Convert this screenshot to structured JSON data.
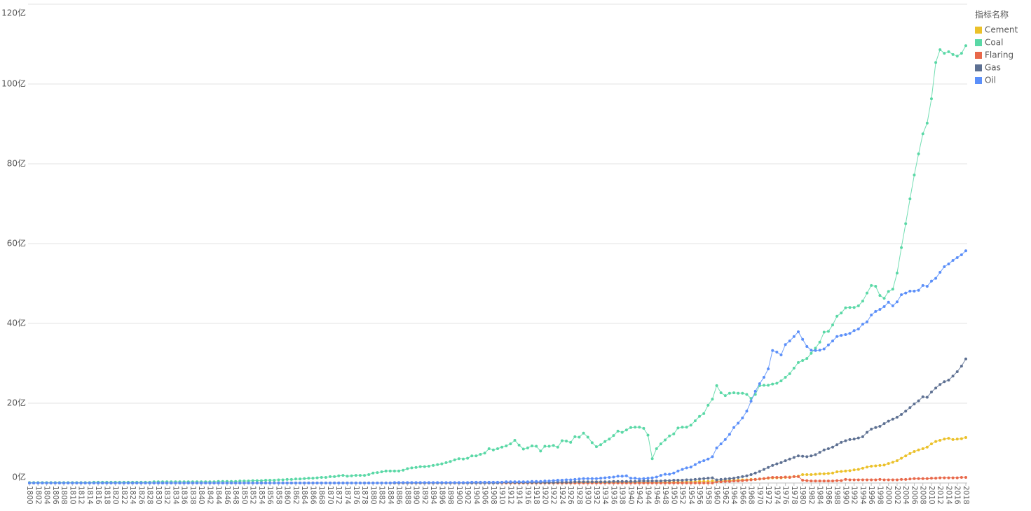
{
  "chart_data": {
    "type": "line",
    "legend_title": "指标名称",
    "legend_position": "right",
    "grid": true,
    "ylim": [
      0,
      120
    ],
    "yticks": [
      {
        "value": 0,
        "label": "0亿"
      },
      {
        "value": 20,
        "label": "20亿"
      },
      {
        "value": 40,
        "label": "40亿"
      },
      {
        "value": 60,
        "label": "60亿"
      },
      {
        "value": 80,
        "label": "80亿"
      },
      {
        "value": 100,
        "label": "100亿"
      },
      {
        "value": 120,
        "label": "120亿"
      }
    ],
    "categories": [
      "1800",
      null,
      "1802",
      null,
      "1804",
      null,
      "1806",
      null,
      "1808",
      null,
      "1810",
      null,
      "1812",
      null,
      "1814",
      null,
      "1816",
      null,
      "1818",
      null,
      "1820",
      null,
      "1822",
      null,
      "1824",
      null,
      "1826",
      null,
      "1828",
      null,
      "1830",
      null,
      "1832",
      null,
      "1834",
      null,
      "1836",
      null,
      "1838",
      null,
      "1840",
      null,
      "1842",
      null,
      "1844",
      null,
      "1846",
      null,
      "1848",
      null,
      "1850",
      null,
      "1852",
      null,
      "1854",
      null,
      "1856",
      null,
      "1858",
      null,
      "1860",
      null,
      "1862",
      null,
      "1864",
      null,
      "1866",
      null,
      "1868",
      null,
      "1870",
      null,
      "1872",
      null,
      "1874",
      null,
      "1876",
      null,
      "1878",
      null,
      "1880",
      null,
      "1882",
      null,
      "1884",
      null,
      "1886",
      null,
      "1888",
      null,
      "1890",
      null,
      "1892",
      null,
      "1894",
      null,
      "1896",
      null,
      "1898",
      null,
      "1900",
      null,
      "1902",
      null,
      "1904",
      null,
      "1906",
      null,
      "1908",
      null,
      "1910",
      null,
      "1912",
      null,
      "1914",
      null,
      "1916",
      null,
      "1918",
      null,
      "1920",
      null,
      "1922",
      null,
      "1924",
      null,
      "1926",
      null,
      "1928",
      null,
      "1930",
      null,
      "1932",
      null,
      "1934",
      null,
      "1936",
      null,
      "1938",
      null,
      "1940",
      null,
      "1942",
      null,
      "1944",
      null,
      "1946",
      null,
      "1948",
      null,
      "1950",
      null,
      "1952",
      null,
      "1954",
      null,
      "1956",
      null,
      "1958",
      null,
      "1960",
      null,
      "1962",
      null,
      "1964",
      null,
      "1966",
      null,
      "1968",
      null,
      "1970",
      null,
      "1972",
      null,
      "1974",
      null,
      "1976",
      null,
      "1978",
      null,
      "1980",
      null,
      "1982",
      null,
      "1984",
      null,
      "1986",
      null,
      "1988",
      null,
      "1990",
      null,
      "1992",
      null,
      "1994",
      null,
      "1996",
      null,
      "1998",
      null,
      "2000",
      null,
      "2002",
      null,
      "2004",
      null,
      "2006",
      null,
      "2008",
      null,
      "2010",
      null,
      "2012",
      null,
      "2014",
      null,
      "2016",
      null,
      "2018"
    ],
    "series": [
      {
        "name": "Cement",
        "color": "#ebc12a",
        "values": [
          0,
          0,
          0,
          0,
          0,
          0,
          0,
          0,
          0,
          0,
          0,
          0,
          0,
          0,
          0,
          0,
          0,
          0,
          0,
          0,
          0,
          0,
          0,
          0,
          0,
          0,
          0,
          0,
          0,
          0,
          0,
          0,
          0,
          0,
          0,
          0,
          0,
          0,
          0,
          0,
          0,
          0,
          0,
          0,
          0,
          0,
          0,
          0,
          0,
          0,
          0,
          0,
          0,
          0,
          0,
          0,
          0,
          0,
          0,
          0,
          0,
          0,
          0,
          0,
          0,
          0,
          0,
          0,
          0,
          0,
          0,
          0,
          0,
          0,
          0,
          0,
          0,
          0,
          0,
          0,
          0,
          0,
          0,
          0,
          0,
          0,
          0,
          0,
          0,
          0,
          0,
          0,
          0,
          0,
          0,
          0,
          0,
          0,
          0,
          0,
          0,
          0,
          0,
          0,
          0,
          0,
          0,
          0,
          0,
          0,
          0,
          0,
          0,
          0,
          0,
          0,
          0,
          0,
          0,
          0,
          0,
          0,
          0,
          0,
          0,
          0,
          0,
          0,
          0.1,
          0.1,
          0.1,
          0.1,
          0.1,
          0.1,
          0.1,
          0.1,
          0.1,
          0.1,
          0.1,
          0.1,
          0.1,
          0.1,
          0.1,
          0.1,
          0.1,
          0.1,
          0.1,
          0.1,
          0.2,
          0.2,
          0.2,
          0.2,
          0.2,
          0.3,
          0.3,
          0.3,
          0.4,
          0.4,
          0.4,
          0.5,
          0.5,
          0.5,
          0.6,
          0.6,
          0.7,
          0.7,
          0.8,
          0.8,
          0.9,
          0.9,
          1.0,
          1.1,
          1.2,
          1.3,
          1.3,
          1.3,
          1.4,
          1.5,
          1.6,
          1.7,
          2.1,
          2.1,
          2.1,
          2.2,
          2.3,
          2.3,
          2.4,
          2.5,
          2.8,
          2.9,
          3.0,
          3.1,
          3.3,
          3.4,
          3.7,
          4.0,
          4.2,
          4.3,
          4.4,
          4.5,
          4.9,
          5.2,
          5.6,
          6.2,
          6.8,
          7.4,
          7.9,
          8.3,
          8.6,
          9.0,
          9.8,
          10.4,
          10.7,
          11.0,
          11.2,
          10.9,
          11.0,
          11.1,
          11.4
        ]
      },
      {
        "name": "Coal",
        "color": "#5ad8a6",
        "values": [
          0.1,
          0.1,
          0.1,
          0.1,
          0.1,
          0.1,
          0.1,
          0.1,
          0.1,
          0.1,
          0.1,
          0.1,
          0.1,
          0.1,
          0.1,
          0.2,
          0.2,
          0.2,
          0.2,
          0.2,
          0.2,
          0.2,
          0.2,
          0.2,
          0.2,
          0.2,
          0.2,
          0.2,
          0.2,
          0.3,
          0.3,
          0.3,
          0.3,
          0.3,
          0.3,
          0.3,
          0.3,
          0.3,
          0.3,
          0.3,
          0.3,
          0.3,
          0.3,
          0.3,
          0.4,
          0.4,
          0.4,
          0.4,
          0.4,
          0.5,
          0.5,
          0.5,
          0.6,
          0.6,
          0.6,
          0.7,
          0.7,
          0.7,
          0.8,
          0.8,
          0.9,
          0.9,
          1.0,
          1.0,
          1.1,
          1.2,
          1.2,
          1.3,
          1.4,
          1.4,
          1.6,
          1.6,
          1.8,
          1.9,
          1.7,
          1.8,
          1.9,
          1.9,
          1.9,
          2.1,
          2.5,
          2.6,
          2.8,
          3.0,
          3.0,
          3.0,
          3.0,
          3.2,
          3.6,
          3.8,
          3.9,
          4.1,
          4.1,
          4.2,
          4.4,
          4.6,
          4.8,
          5.1,
          5.4,
          5.8,
          6.1,
          6.0,
          6.2,
          6.8,
          6.8,
          7.2,
          7.5,
          8.6,
          8.3,
          8.6,
          9.0,
          9.3,
          9.8,
          10.7,
          9.5,
          8.5,
          8.8,
          9.3,
          9.2,
          8.0,
          9.2,
          9.2,
          9.4,
          9.0,
          10.6,
          10.5,
          10.2,
          11.6,
          11.5,
          12.5,
          11.5,
          10.1,
          9.1,
          9.6,
          10.4,
          11.0,
          11.9,
          13.0,
          12.7,
          13.3,
          13.9,
          14.0,
          14.0,
          13.7,
          12.0,
          6.1,
          8.6,
          9.8,
          10.8,
          11.8,
          12.3,
          13.8,
          14.0,
          14.0,
          14.5,
          15.6,
          16.7,
          17.4,
          19.5,
          21.0,
          24.4,
          22.6,
          21.9,
          22.5,
          22.6,
          22.5,
          22.5,
          22.2,
          21.2,
          22.2,
          24.4,
          24.5,
          24.5,
          24.8,
          25.0,
          25.6,
          26.5,
          27.4,
          28.8,
          30.2,
          30.7,
          31.2,
          32.5,
          33.8,
          35.3,
          37.8,
          38.0,
          39.6,
          41.8,
          42.6,
          43.9,
          44.0,
          44.0,
          44.4,
          45.6,
          47.6,
          49.5,
          49.3,
          47.0,
          46.3,
          48.0,
          48.6,
          52.6,
          59.0,
          65.0,
          71.2,
          77.2,
          82.5,
          87.5,
          90.2,
          96.3,
          105.4,
          108.6,
          107.7,
          108.1,
          107.4,
          107.0,
          107.7,
          109.6
        ]
      },
      {
        "name": "Flaring",
        "color": "#e8684a",
        "values": [
          0,
          0,
          0,
          0,
          0,
          0,
          0,
          0,
          0,
          0,
          0,
          0,
          0,
          0,
          0,
          0,
          0,
          0,
          0,
          0,
          0,
          0,
          0,
          0,
          0,
          0,
          0,
          0,
          0,
          0,
          0,
          0,
          0,
          0,
          0,
          0,
          0,
          0,
          0,
          0,
          0,
          0,
          0,
          0,
          0,
          0,
          0,
          0,
          0,
          0,
          0,
          0,
          0,
          0,
          0,
          0,
          0,
          0,
          0,
          0,
          0,
          0,
          0,
          0,
          0,
          0,
          0,
          0,
          0,
          0,
          0,
          0,
          0,
          0,
          0,
          0,
          0,
          0,
          0,
          0,
          0,
          0,
          0,
          0,
          0,
          0,
          0,
          0,
          0,
          0,
          0,
          0,
          0,
          0,
          0,
          0,
          0,
          0,
          0,
          0,
          0,
          0,
          0,
          0,
          0,
          0,
          0,
          0,
          0,
          0,
          0,
          0,
          0,
          0,
          0,
          0,
          0,
          0,
          0,
          0,
          0,
          0,
          0,
          0,
          0,
          0,
          0,
          0,
          0,
          0,
          0,
          0,
          0,
          0,
          0,
          0,
          0,
          0,
          0,
          0,
          0,
          0,
          0,
          0,
          0,
          0,
          0,
          0,
          0,
          0,
          0,
          0,
          0,
          0,
          0,
          0,
          0,
          0,
          0,
          0,
          0.3,
          0.3,
          0.4,
          0.4,
          0.5,
          0.5,
          0.6,
          0.7,
          0.8,
          0.9,
          1.0,
          1.1,
          1.3,
          1.4,
          1.4,
          1.4,
          1.5,
          1.4,
          1.6,
          1.6,
          0.7,
          0.6,
          0.5,
          0.5,
          0.5,
          0.5,
          0.5,
          0.5,
          0.6,
          0.6,
          0.9,
          0.8,
          0.8,
          0.8,
          0.8,
          0.8,
          0.8,
          0.8,
          0.9,
          0.8,
          0.8,
          0.8,
          0.8,
          0.9,
          0.9,
          1.0,
          1.1,
          1.1,
          1.1,
          1.1,
          1.2,
          1.2,
          1.3,
          1.3,
          1.3,
          1.3,
          1.3,
          1.4,
          1.4
        ]
      },
      {
        "name": "Gas",
        "color": "#5d7092",
        "values": [
          0,
          0,
          0,
          0,
          0,
          0,
          0,
          0,
          0,
          0,
          0,
          0,
          0,
          0,
          0,
          0,
          0,
          0,
          0,
          0,
          0,
          0,
          0,
          0,
          0,
          0,
          0,
          0,
          0,
          0,
          0,
          0,
          0,
          0,
          0,
          0,
          0,
          0,
          0,
          0,
          0,
          0,
          0,
          0,
          0,
          0,
          0,
          0,
          0,
          0,
          0,
          0,
          0,
          0,
          0,
          0,
          0,
          0,
          0,
          0,
          0,
          0,
          0,
          0,
          0,
          0,
          0,
          0,
          0,
          0,
          0,
          0,
          0,
          0,
          0,
          0,
          0,
          0,
          0,
          0,
          0,
          0,
          0,
          0,
          0,
          0,
          0,
          0,
          0,
          0,
          0,
          0,
          0,
          0,
          0,
          0,
          0,
          0,
          0,
          0,
          0,
          0,
          0,
          0,
          0,
          0,
          0,
          0,
          0,
          0,
          0.1,
          0.1,
          0.1,
          0.1,
          0.1,
          0.1,
          0.1,
          0.1,
          0.1,
          0.1,
          0.1,
          0.1,
          0.1,
          0.2,
          0.2,
          0.2,
          0.2,
          0.3,
          0.3,
          0.3,
          0.3,
          0.3,
          0.3,
          0.3,
          0.3,
          0.3,
          0.4,
          0.4,
          0.4,
          0.4,
          0.4,
          0.4,
          0.5,
          0.5,
          0.5,
          0.5,
          0.5,
          0.5,
          0.6,
          0.6,
          0.7,
          0.7,
          0.7,
          0.8,
          0.8,
          0.9,
          1.0,
          1.1,
          1.2,
          1.3,
          0.8,
          0.9,
          1.0,
          1.1,
          1.2,
          1.4,
          1.6,
          1.8,
          2.1,
          2.5,
          2.9,
          3.4,
          3.9,
          4.4,
          4.8,
          5.1,
          5.6,
          6.0,
          6.4,
          6.8,
          6.7,
          6.6,
          6.8,
          7.1,
          7.7,
          8.3,
          8.6,
          9.0,
          9.6,
          10.2,
          10.6,
          10.9,
          11.0,
          11.3,
          11.6,
          12.7,
          13.5,
          13.9,
          14.2,
          14.9,
          15.5,
          16.0,
          16.5,
          17.2,
          18.0,
          18.9,
          19.8,
          20.6,
          21.6,
          21.5,
          22.8,
          23.8,
          24.7,
          25.4,
          25.8,
          26.8,
          27.9,
          29.3,
          31.1
        ]
      },
      {
        "name": "Oil",
        "color": "#5b8ff9",
        "values": [
          0,
          0,
          0,
          0,
          0,
          0,
          0,
          0,
          0,
          0,
          0,
          0,
          0,
          0,
          0,
          0,
          0,
          0,
          0,
          0,
          0,
          0,
          0,
          0,
          0,
          0,
          0,
          0,
          0,
          0,
          0,
          0,
          0,
          0,
          0,
          0,
          0,
          0,
          0,
          0,
          0,
          0,
          0,
          0,
          0,
          0,
          0,
          0,
          0,
          0,
          0,
          0,
          0,
          0,
          0,
          0,
          0,
          0,
          0,
          0,
          0,
          0,
          0,
          0,
          0,
          0,
          0,
          0,
          0,
          0,
          0,
          0,
          0,
          0,
          0,
          0,
          0,
          0,
          0,
          0,
          0,
          0,
          0,
          0,
          0,
          0.1,
          0.1,
          0.1,
          0.1,
          0.1,
          0.1,
          0.1,
          0.1,
          0.1,
          0.1,
          0.1,
          0.1,
          0.1,
          0.1,
          0.1,
          0.1,
          0.1,
          0.1,
          0.2,
          0.2,
          0.2,
          0.2,
          0.2,
          0.2,
          0.2,
          0.2,
          0.3,
          0.3,
          0.3,
          0.3,
          0.3,
          0.3,
          0.4,
          0.4,
          0.4,
          0.5,
          0.5,
          0.6,
          0.7,
          0.7,
          0.8,
          0.8,
          0.9,
          1.0,
          1.1,
          1.1,
          1.1,
          1.1,
          1.2,
          1.3,
          1.4,
          1.5,
          1.7,
          1.7,
          1.8,
          1.2,
          1.2,
          1.0,
          1.1,
          1.2,
          1.3,
          1.5,
          1.9,
          2.2,
          2.2,
          2.5,
          3.0,
          3.4,
          3.8,
          4.0,
          4.6,
          5.2,
          5.6,
          6.0,
          6.6,
          8.8,
          9.8,
          10.9,
          12.2,
          13.9,
          15.0,
          16.3,
          18.0,
          20.5,
          23.0,
          24.9,
          26.5,
          28.6,
          33.2,
          32.8,
          32.1,
          34.7,
          35.6,
          36.7,
          37.9,
          36.0,
          34.2,
          33.3,
          33.2,
          33.3,
          33.6,
          34.6,
          35.6,
          36.7,
          37.0,
          37.2,
          37.5,
          38.2,
          38.6,
          39.8,
          40.4,
          42.1,
          43.0,
          43.5,
          44.2,
          45.3,
          44.4,
          45.4,
          47.2,
          47.6,
          48.1,
          48.1,
          48.3,
          49.5,
          49.3,
          50.6,
          51.3,
          52.8,
          54.2,
          54.9,
          55.8,
          56.5,
          57.2,
          58.2
        ]
      }
    ]
  }
}
